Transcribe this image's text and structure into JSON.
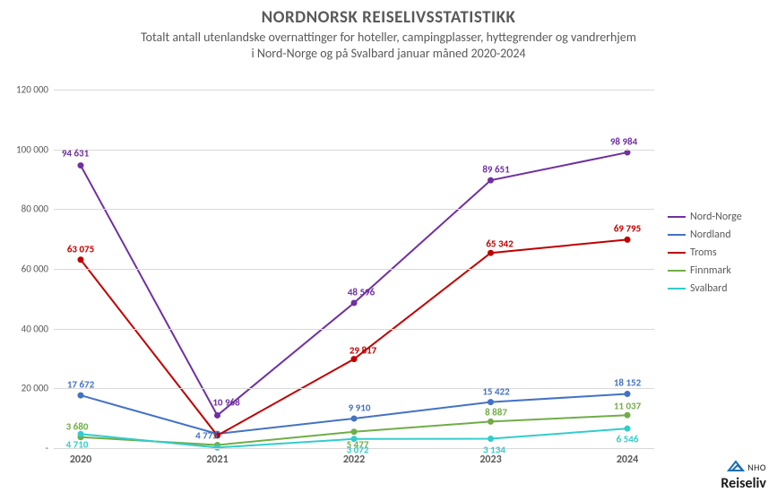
{
  "title": "NORDNORSK REISELIVSSTATISTIKK",
  "subtitle_line1": "Totalt antall utenlandske overnattinger for hoteller, campingplasser, hyttegrender og vandrerhjem",
  "subtitle_line2": "i Nord-Norge og på Svalbard januar måned 2020-2024",
  "chart": {
    "type": "line",
    "background_color": "#ffffff",
    "grid_color": "#d9d9d9",
    "text_color": "#595959",
    "ylim": [
      0,
      120000
    ],
    "ytick_step": 20000,
    "ytick_labels": [
      "-",
      "20 000",
      "40 000",
      "60 000",
      "80 000",
      "100 000",
      "120 000"
    ],
    "categories": [
      "2020",
      "2021",
      "2022",
      "2023",
      "2024"
    ],
    "series": [
      {
        "name": "Nord-Norge",
        "color": "#7030a0",
        "values": [
          94631,
          10968,
          48596,
          89651,
          98984
        ],
        "labels": [
          "94 631",
          "10 968",
          "48 596",
          "89 651",
          "98 984"
        ],
        "label_offsets": [
          [
            -6,
            -14
          ],
          [
            10,
            -14
          ],
          [
            8,
            -12
          ],
          [
            6,
            -12
          ],
          [
            -4,
            -12
          ]
        ]
      },
      {
        "name": "Nordland",
        "color": "#4472c4",
        "values": [
          17672,
          4775,
          9910,
          15422,
          18152
        ],
        "labels": [
          "17 672",
          "4 775",
          "9 910",
          "15 422",
          "18 152"
        ],
        "label_offsets": [
          [
            0,
            -12
          ],
          [
            -12,
            2
          ],
          [
            6,
            -12
          ],
          [
            6,
            -12
          ],
          [
            0,
            -12
          ]
        ]
      },
      {
        "name": "Troms",
        "color": "#c00000",
        "values": [
          63075,
          4227,
          29817,
          65342,
          69795
        ],
        "labels": [
          "63 075",
          "",
          "29 817",
          "65 342",
          "69 795"
        ],
        "label_offsets": [
          [
            0,
            -12
          ],
          [
            0,
            0
          ],
          [
            10,
            -10
          ],
          [
            10,
            -10
          ],
          [
            0,
            -12
          ]
        ]
      },
      {
        "name": "Finnmark",
        "color": "#70ad47",
        "values": [
          3680,
          1036,
          5477,
          8887,
          11037
        ],
        "labels": [
          "3 680",
          "",
          "5 477",
          "8 887",
          "11 037"
        ],
        "label_offsets": [
          [
            -4,
            -12
          ],
          [
            0,
            0
          ],
          [
            4,
            14
          ],
          [
            6,
            -10
          ],
          [
            0,
            -10
          ]
        ]
      },
      {
        "name": "Svalbard",
        "color": "#33cccc",
        "values": [
          4710,
          200,
          3072,
          3134,
          6546
        ],
        "labels": [
          "4 710",
          "",
          "3 072",
          "3 134",
          "6 546"
        ],
        "label_offsets": [
          [
            -4,
            12
          ],
          [
            0,
            0
          ],
          [
            4,
            12
          ],
          [
            4,
            12
          ],
          [
            0,
            12
          ]
        ]
      }
    ],
    "marker_radius": 3.5,
    "line_width": 2,
    "label_fontsize": 11
  },
  "legend": {
    "items": [
      "Nord-Norge",
      "Nordland",
      "Troms",
      "Finnmark",
      "Svalbard"
    ]
  },
  "logo": {
    "top": "NHO",
    "brand": "Reiseliv"
  }
}
